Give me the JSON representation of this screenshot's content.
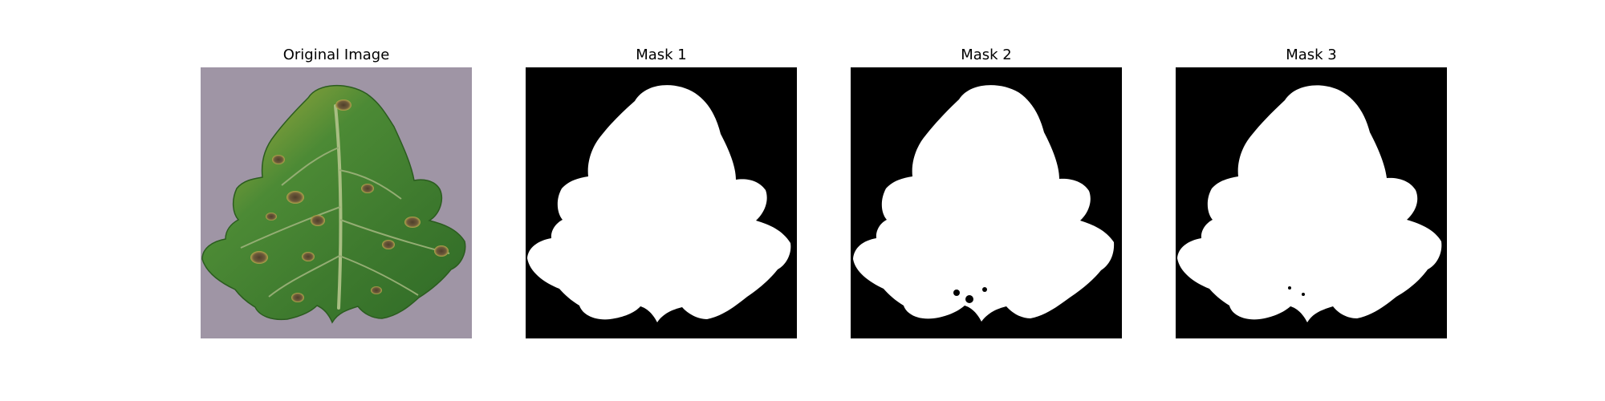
{
  "figure": {
    "panels": [
      {
        "title": "Original Image",
        "content": "leaf-photo"
      },
      {
        "title": "Mask 1",
        "content": "segmentation-mask"
      },
      {
        "title": "Mask 2",
        "content": "segmentation-mask"
      },
      {
        "title": "Mask 3",
        "content": "segmentation-mask"
      }
    ]
  },
  "colors": {
    "background": "#ffffff",
    "mask_background": "#000000",
    "mask_foreground": "#ffffff",
    "photo_background": "#9f95a5",
    "leaf_green": "#3e7a2e",
    "leaf_yellow": "#b6b23f",
    "lesion_brown": "#6d5a3a",
    "vein": "#a8be82"
  }
}
